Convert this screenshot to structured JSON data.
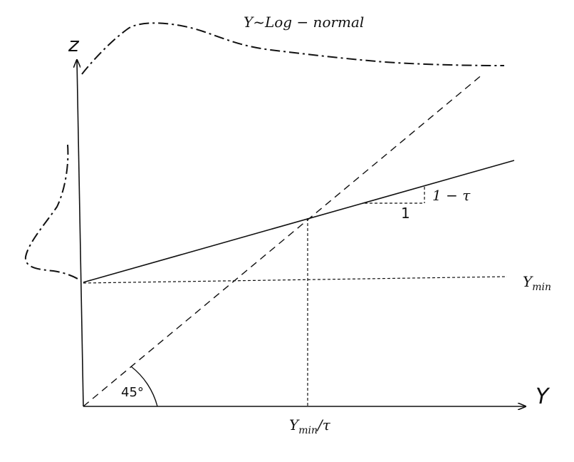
{
  "diagram": {
    "axes": {
      "vertical_label": "z",
      "horizontal_label": "Y"
    },
    "distribution_label": "Y~Log − normal",
    "ymin": {
      "base": "Y",
      "subscript": "min"
    },
    "ymin_over_tau": {
      "base": "Y",
      "subscript": "min",
      "suffix": "/τ"
    },
    "slope_rise_label": "1 − τ",
    "slope_run_label": "1",
    "angle_label": "45°",
    "colors": {
      "ink": "#111111",
      "background": "#ffffff"
    }
  }
}
